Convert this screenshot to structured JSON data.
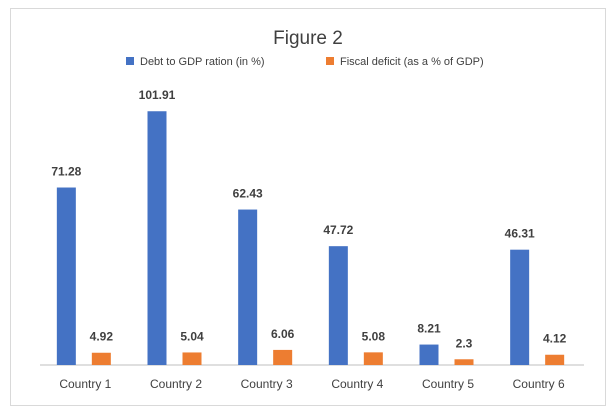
{
  "chart_data": {
    "type": "bar",
    "title": "Figure 2",
    "categories": [
      "Country 1",
      "Country 2",
      "Country 3",
      "Country 4",
      "Country 5",
      "Country 6"
    ],
    "series": [
      {
        "name": "Debt to GDP ration (in %)",
        "values": [
          71.28,
          101.91,
          62.43,
          47.72,
          8.21,
          46.31
        ],
        "color": "#4472c4"
      },
      {
        "name": "Fiscal deficit (as a % of GDP)",
        "values": [
          4.92,
          5.04,
          6.06,
          5.08,
          2.3,
          4.12
        ],
        "color": "#ed7d31"
      }
    ],
    "xlabel": "",
    "ylabel": "",
    "ylim": [
      0,
      110
    ],
    "legend": "top",
    "grid": false,
    "data_labels": true
  }
}
